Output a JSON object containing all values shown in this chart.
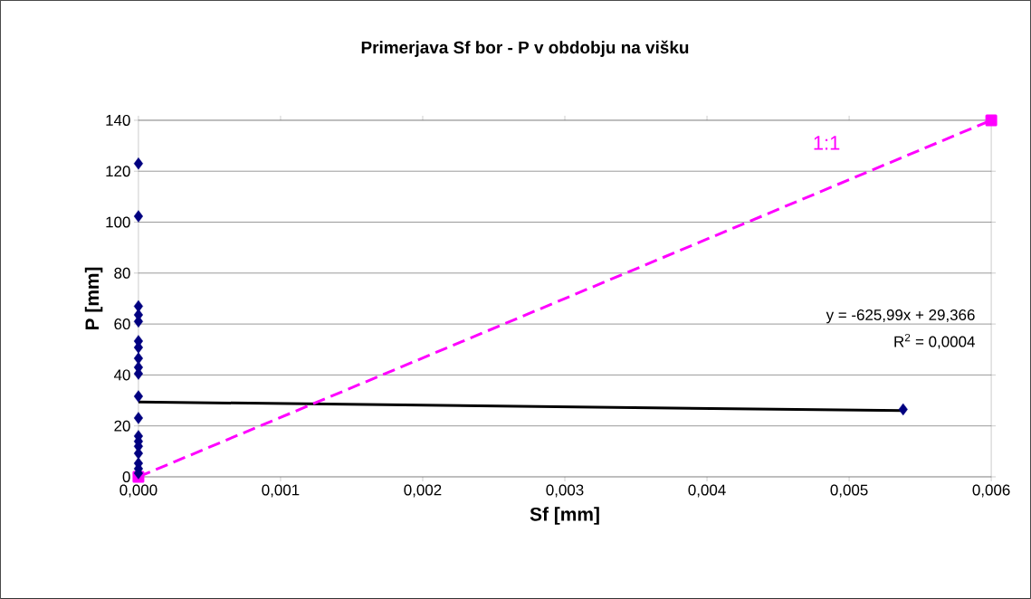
{
  "chart_data": {
    "type": "scatter",
    "title": "Primerjava Sf bor - P v obdobju na višku",
    "xlabel": "Sf [mm]",
    "ylabel": "P [mm]",
    "series": [
      {
        "color": "#000080",
        "marker": "diamond",
        "x": [
          0,
          0,
          0,
          0,
          0,
          0,
          0,
          0,
          0,
          0,
          0,
          0,
          0,
          0,
          0,
          0,
          0,
          0,
          0,
          0.00538
        ],
        "values": [
          123,
          102.3,
          67,
          63.6,
          61,
          53.3,
          50.8,
          46.5,
          43,
          40.5,
          31.6,
          23.1,
          16,
          13.9,
          12,
          9.2,
          5.3,
          3.2,
          1.4,
          26.5
        ]
      },
      {
        "type": "line",
        "color": "#000000",
        "marker": "none",
        "line_style": "solid",
        "x": [
          0,
          0.00538
        ],
        "values": [
          29.4,
          26
        ]
      },
      {
        "type": "line",
        "name": "1:1",
        "color": "#ff00ff",
        "marker": "square",
        "line_style": "dashed",
        "x": [
          0,
          0.006
        ],
        "values": [
          0,
          140
        ]
      }
    ],
    "xlim": [
      0,
      0.006
    ],
    "ylim": [
      0,
      140
    ],
    "xticks": [
      {
        "value": 0,
        "label": "0,000"
      },
      {
        "value": 0.001,
        "label": "0,001"
      },
      {
        "value": 0.002,
        "label": "0,002"
      },
      {
        "value": 0.003,
        "label": "0,003"
      },
      {
        "value": 0.004,
        "label": "0,004"
      },
      {
        "value": 0.005,
        "label": "0,005"
      },
      {
        "value": 0.006,
        "label": "0,006"
      }
    ],
    "yticks": [
      0,
      20,
      40,
      60,
      80,
      100,
      120,
      140
    ],
    "grid": "y",
    "annotations": [
      "y = -625,99x + 29,366",
      "R$^{2}$ = 0,0004"
    ]
  }
}
